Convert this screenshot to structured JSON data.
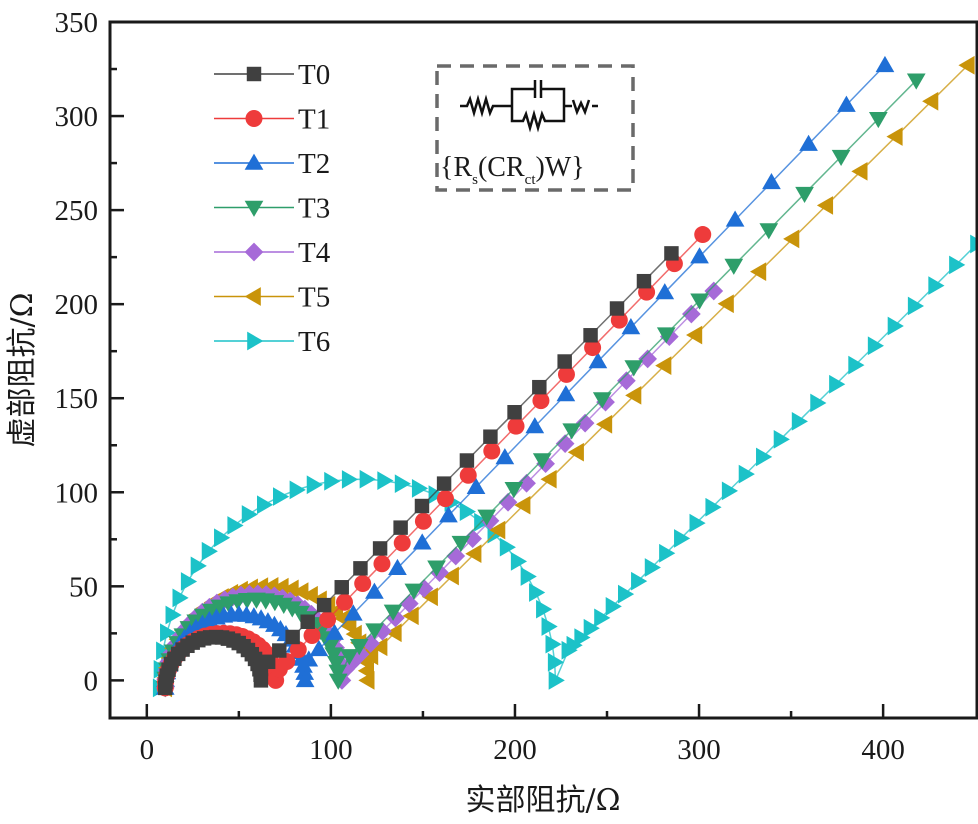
{
  "chart_data": {
    "type": "scatter",
    "title": "",
    "xlabel": "实部阻抗/Ω",
    "ylabel": "虚部阻抗/Ω",
    "xlim": [
      -20,
      451
    ],
    "ylim": [
      -20,
      350
    ],
    "xticks": [
      0,
      100,
      200,
      300,
      400
    ],
    "xtick_labels": [
      "0",
      "100",
      "200",
      "300",
      "400"
    ],
    "xminor": [
      50,
      150,
      250,
      350
    ],
    "yticks": [
      0,
      50,
      100,
      150,
      200,
      250,
      300,
      350
    ],
    "ytick_labels": [
      "0",
      "50",
      "100",
      "150",
      "200",
      "250",
      "300",
      "350"
    ],
    "yminor": [
      25,
      75,
      125,
      175,
      225,
      275,
      325
    ],
    "grid": false,
    "legend_position": "top-left",
    "inset": {
      "circuit_label_main": "{R",
      "circuit_label_s": "s",
      "circuit_label_mid": "(CR",
      "circuit_label_ct": "ct",
      "circuit_label_end": ")W}",
      "circuit_w": "W"
    },
    "series": [
      {
        "name": "T0",
        "color": "#404040",
        "marker": "square",
        "arc": {
          "x0": 10,
          "x1": 62,
          "peak": 25,
          "n": 26
        },
        "min": [
          62,
          6
        ],
        "tail": {
          "end": [
            285,
            227
          ],
          "n": 20
        }
      },
      {
        "name": "T1",
        "color": "#ee3b3b",
        "marker": "circle",
        "arc": {
          "x0": 10,
          "x1": 70,
          "peak": 27,
          "n": 28
        },
        "min": [
          72,
          6
        ],
        "tail": {
          "end": [
            302,
            237
          ],
          "n": 20
        }
      },
      {
        "name": "T2",
        "color": "#1f6fd6",
        "marker": "triangle-up",
        "arc": {
          "x0": 10,
          "x1": 86,
          "peak": 37,
          "n": 30
        },
        "min": [
          88,
          11
        ],
        "tail": {
          "end": [
            401,
            327
          ],
          "n": 20
        }
      },
      {
        "name": "T3",
        "color": "#2e9e6a",
        "marker": "triangle-down",
        "arc": {
          "x0": 10,
          "x1": 104,
          "peak": 45,
          "n": 30
        },
        "min": [
          110,
          13
        ],
        "tail": {
          "end": [
            418,
            319
          ],
          "n": 20
        }
      },
      {
        "name": "T4",
        "color": "#a66ad8",
        "marker": "diamond",
        "arc": {
          "x0": 10,
          "x1": 106,
          "peak": 48,
          "n": 34
        },
        "min": [
          108,
          6
        ],
        "tail": {
          "end": [
            308,
            207
          ],
          "n": 22
        }
      },
      {
        "name": "T5",
        "color": "#c9940a",
        "marker": "triangle-left",
        "arc": {
          "x0": 10,
          "x1": 120,
          "peak": 52,
          "n": 32
        },
        "min": [
          122,
          13
        ],
        "tail": {
          "end": [
            446,
            327
          ],
          "n": 22
        }
      },
      {
        "name": "T6",
        "color": "#1cc2c8",
        "marker": "triangle-right",
        "arc": {
          "x0": 7,
          "x1": 222,
          "peak": 109,
          "n": 36
        },
        "min": [
          229,
          16
        ],
        "tail": {
          "end": [
            451,
            232
          ],
          "n": 26
        }
      }
    ]
  }
}
